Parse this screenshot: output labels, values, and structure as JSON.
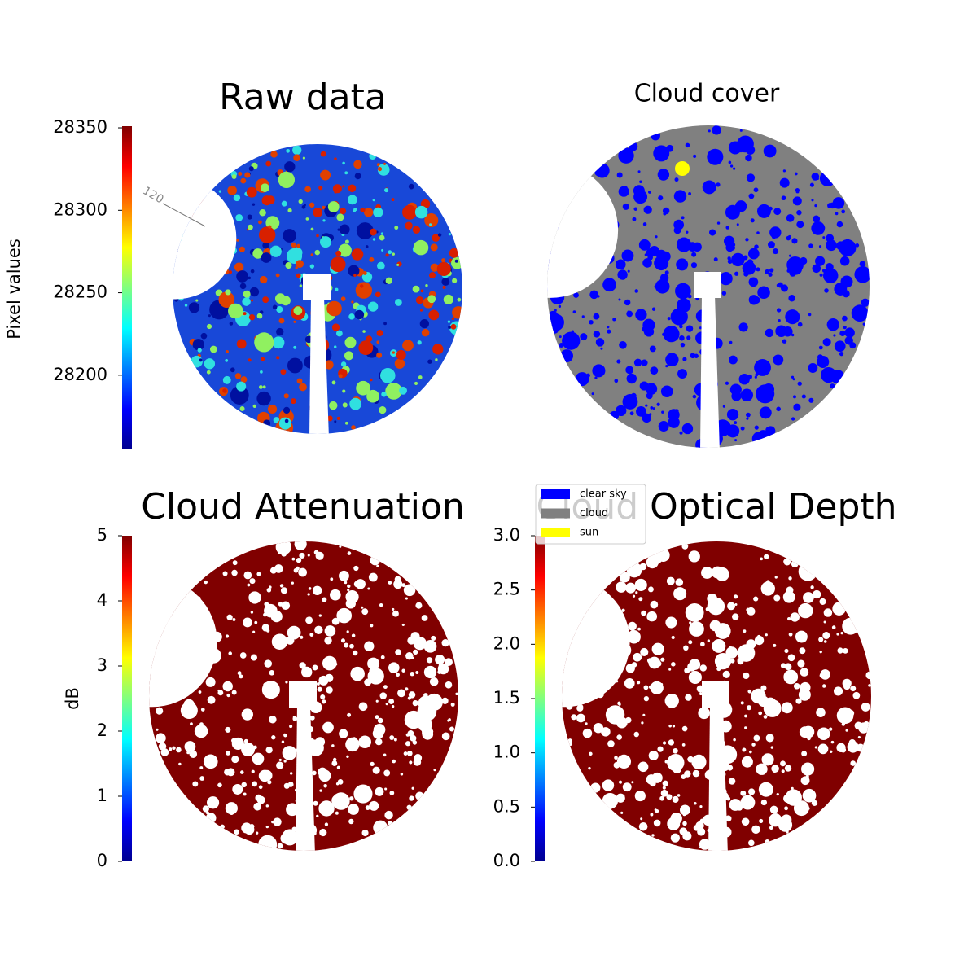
{
  "chart_data": [
    {
      "type": "image",
      "title": "Raw data",
      "colorbar_label": "Pixel values",
      "colormap": "jet",
      "ylim": [
        28155,
        28351
      ],
      "yticks": [
        28200,
        28250,
        28300,
        28350
      ],
      "annotations": [
        "120"
      ]
    },
    {
      "type": "image",
      "title": "Cloud cover",
      "legend_entries": [
        {
          "name": "clear sky",
          "color": "#0000ff"
        },
        {
          "name": "cloud",
          "color": "#808080"
        },
        {
          "name": "sun",
          "color": "#ffff00"
        }
      ]
    },
    {
      "type": "image",
      "title": "Cloud Attenuation",
      "colorbar_label": "dB",
      "colormap": "jet",
      "ylim": [
        0,
        5
      ],
      "yticks": [
        0,
        1,
        2,
        3,
        4,
        5
      ]
    },
    {
      "type": "image",
      "title": "Cloud Optical Depth",
      "colormap": "jet",
      "ylim": [
        0,
        3
      ],
      "yticks": [
        {
          "value": 0,
          "label": "0.0"
        },
        0.5,
        {
          "value": 1,
          "label": "1.0"
        },
        1.5,
        {
          "value": 2,
          "label": "2.0"
        },
        2.5,
        {
          "value": 3,
          "label": "3.0"
        }
      ]
    }
  ]
}
